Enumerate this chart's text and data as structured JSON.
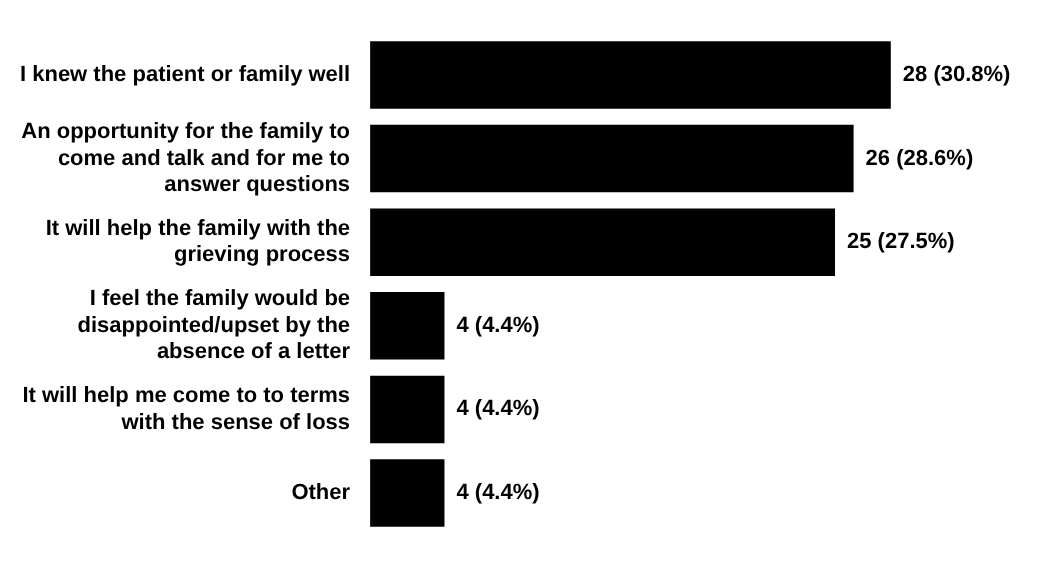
{
  "chart_data": {
    "type": "bar",
    "orientation": "horizontal",
    "categories": [
      "I knew the patient or family well",
      "An opportunity for the family to come and talk and for me to answer questions",
      "It will help the family with the grieving process",
      "I feel the family would be disappointed/upset by the absence of a letter",
      "It will help me come to to terms with the sense of loss",
      "Other"
    ],
    "values": [
      28,
      26,
      25,
      4,
      4,
      4
    ],
    "value_labels": [
      "28 (30.8%)",
      "26 (28.6%)",
      "25 (27.5%)",
      "4 (4.4%)",
      "4 (4.4%)",
      "4 (4.4%)"
    ],
    "color": "#000000",
    "tick_labels": "y"
  }
}
